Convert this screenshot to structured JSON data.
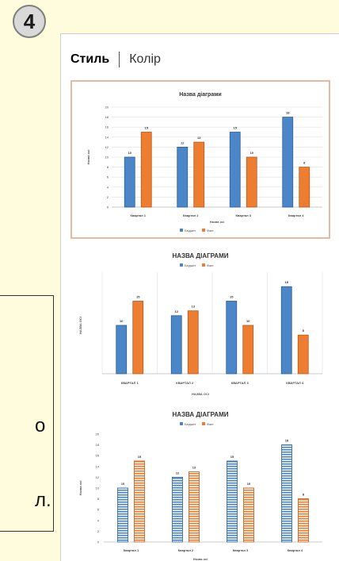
{
  "step_number": "4",
  "left_fragments": [
    "о",
    "л."
  ],
  "tabs": [
    {
      "label": "Стиль",
      "active": true
    },
    {
      "label": "Колір",
      "active": false
    }
  ],
  "colors": {
    "series1": "#4a86c8",
    "series2": "#ed7d31"
  },
  "chart_data": [
    {
      "type": "bar",
      "title": "Назва діаграми",
      "xlabel": "Назва осі",
      "ylabel": "Назва осі",
      "categories": [
        "Квартал 1",
        "Квартал 2",
        "Квартал 3",
        "Квартал 4"
      ],
      "series": [
        {
          "name": "Бюджет",
          "values": [
            10,
            12,
            15,
            18
          ]
        },
        {
          "name": "Факт",
          "values": [
            15,
            13,
            10,
            8
          ]
        }
      ],
      "ylim": [
        0,
        20
      ],
      "yticks": [
        0,
        2,
        4,
        6,
        8,
        10,
        12,
        14,
        16,
        18,
        20
      ],
      "legend": "bottom",
      "grid": true
    },
    {
      "type": "bar",
      "title": "НАЗВА ДІАГРАМИ",
      "xlabel": "НАЗВА ОСІ",
      "ylabel": "НАЗВА ОСІ",
      "categories": [
        "КВАРТАЛ 1",
        "КВАРТАЛ 2",
        "КВАРТАЛ 3",
        "КВАРТАЛ 4"
      ],
      "series": [
        {
          "name": "Бюджет",
          "values": [
            10,
            12,
            15,
            18
          ]
        },
        {
          "name": "Факт",
          "values": [
            15,
            13,
            10,
            8
          ]
        }
      ],
      "ylim": [
        0,
        20
      ],
      "legend": "top",
      "grid": false
    },
    {
      "type": "bar",
      "title": "НАЗВА ДІАГРАМИ",
      "xlabel": "Назва осі",
      "ylabel": "Назва осі",
      "categories": [
        "Квартал 1",
        "Квартал 2",
        "Квартал 3",
        "Квартал 4"
      ],
      "series": [
        {
          "name": "Бюджет",
          "values": [
            10,
            12,
            15,
            18
          ]
        },
        {
          "name": "Факт",
          "values": [
            15,
            13,
            10,
            8
          ]
        }
      ],
      "ylim": [
        0,
        20
      ],
      "yticks": [
        0,
        2,
        4,
        6,
        8,
        10,
        12,
        14,
        16,
        18,
        20
      ],
      "legend": "top",
      "grid": false
    }
  ]
}
